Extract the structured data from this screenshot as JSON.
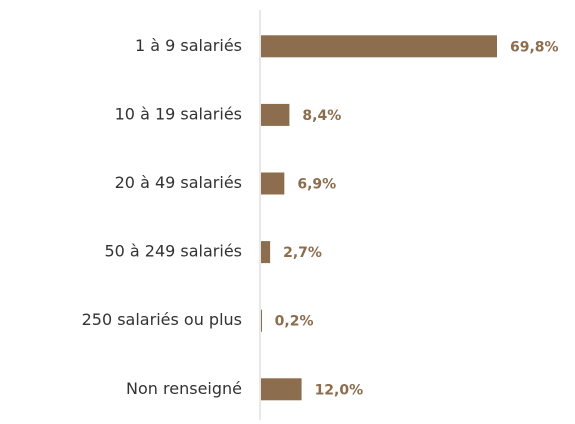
{
  "chart_data": {
    "type": "hbar",
    "categories": [
      "1 à 9 salariés",
      "10 à 19 salariés",
      "20 à 49 salariés",
      "50 à 249 salariés",
      "250 salariés ou plus",
      "Non renseigné"
    ],
    "values": [
      69.8,
      8.4,
      6.9,
      2.7,
      0.2,
      12.0
    ],
    "value_labels": [
      "69,8%",
      "8,4%",
      "6,9%",
      "2,7%",
      "0,2%",
      "12,0%"
    ],
    "color": "#8c6d4d"
  }
}
